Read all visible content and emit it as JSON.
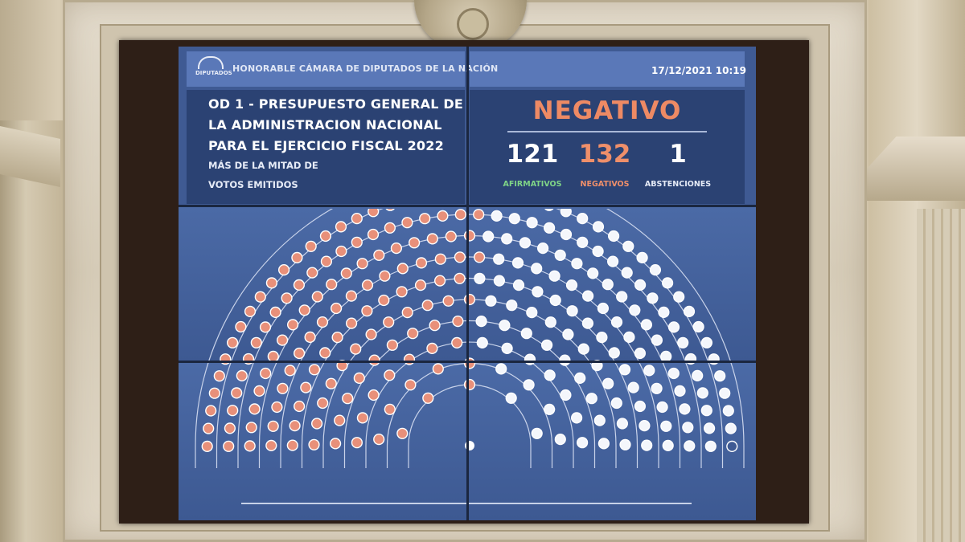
{
  "board": {
    "logo_label": "DIPUTADOS",
    "chamber": "HONORABLE CÁMARA DE DIPUTADOS DE LA NACIÓN",
    "datetime": "17/12/2021 10:19",
    "title_lines": [
      "OD 1 - PRESUPUESTO GENERAL DE",
      "LA ADMINISTRACION NACIONAL",
      "PARA EL EJERCICIO FISCAL 2022"
    ],
    "majority_lines": [
      "MÁS DE LA MITAD DE",
      "VOTOS EMITIDOS"
    ],
    "result": "NEGATIVO",
    "counts": [
      {
        "value": "121",
        "label": "AFIRMATIVOS",
        "color": "#ffffff",
        "label_color": "#7fd487"
      },
      {
        "value": "132",
        "label": "NEGATIVOS",
        "color": "#ef8f6a",
        "label_color": "#ef8f6a"
      },
      {
        "value": "1",
        "label": "ABSTENCIONES",
        "color": "#ffffff",
        "label_color": "#e6ebf7"
      }
    ]
  },
  "seating": {
    "negative_color": "#e8907a",
    "affirmative_color": "#f4f6fb",
    "arc_color": "#c9d3ea",
    "rows": 10,
    "negatives": 132,
    "affirmatives": 121,
    "abstentions": 1
  }
}
